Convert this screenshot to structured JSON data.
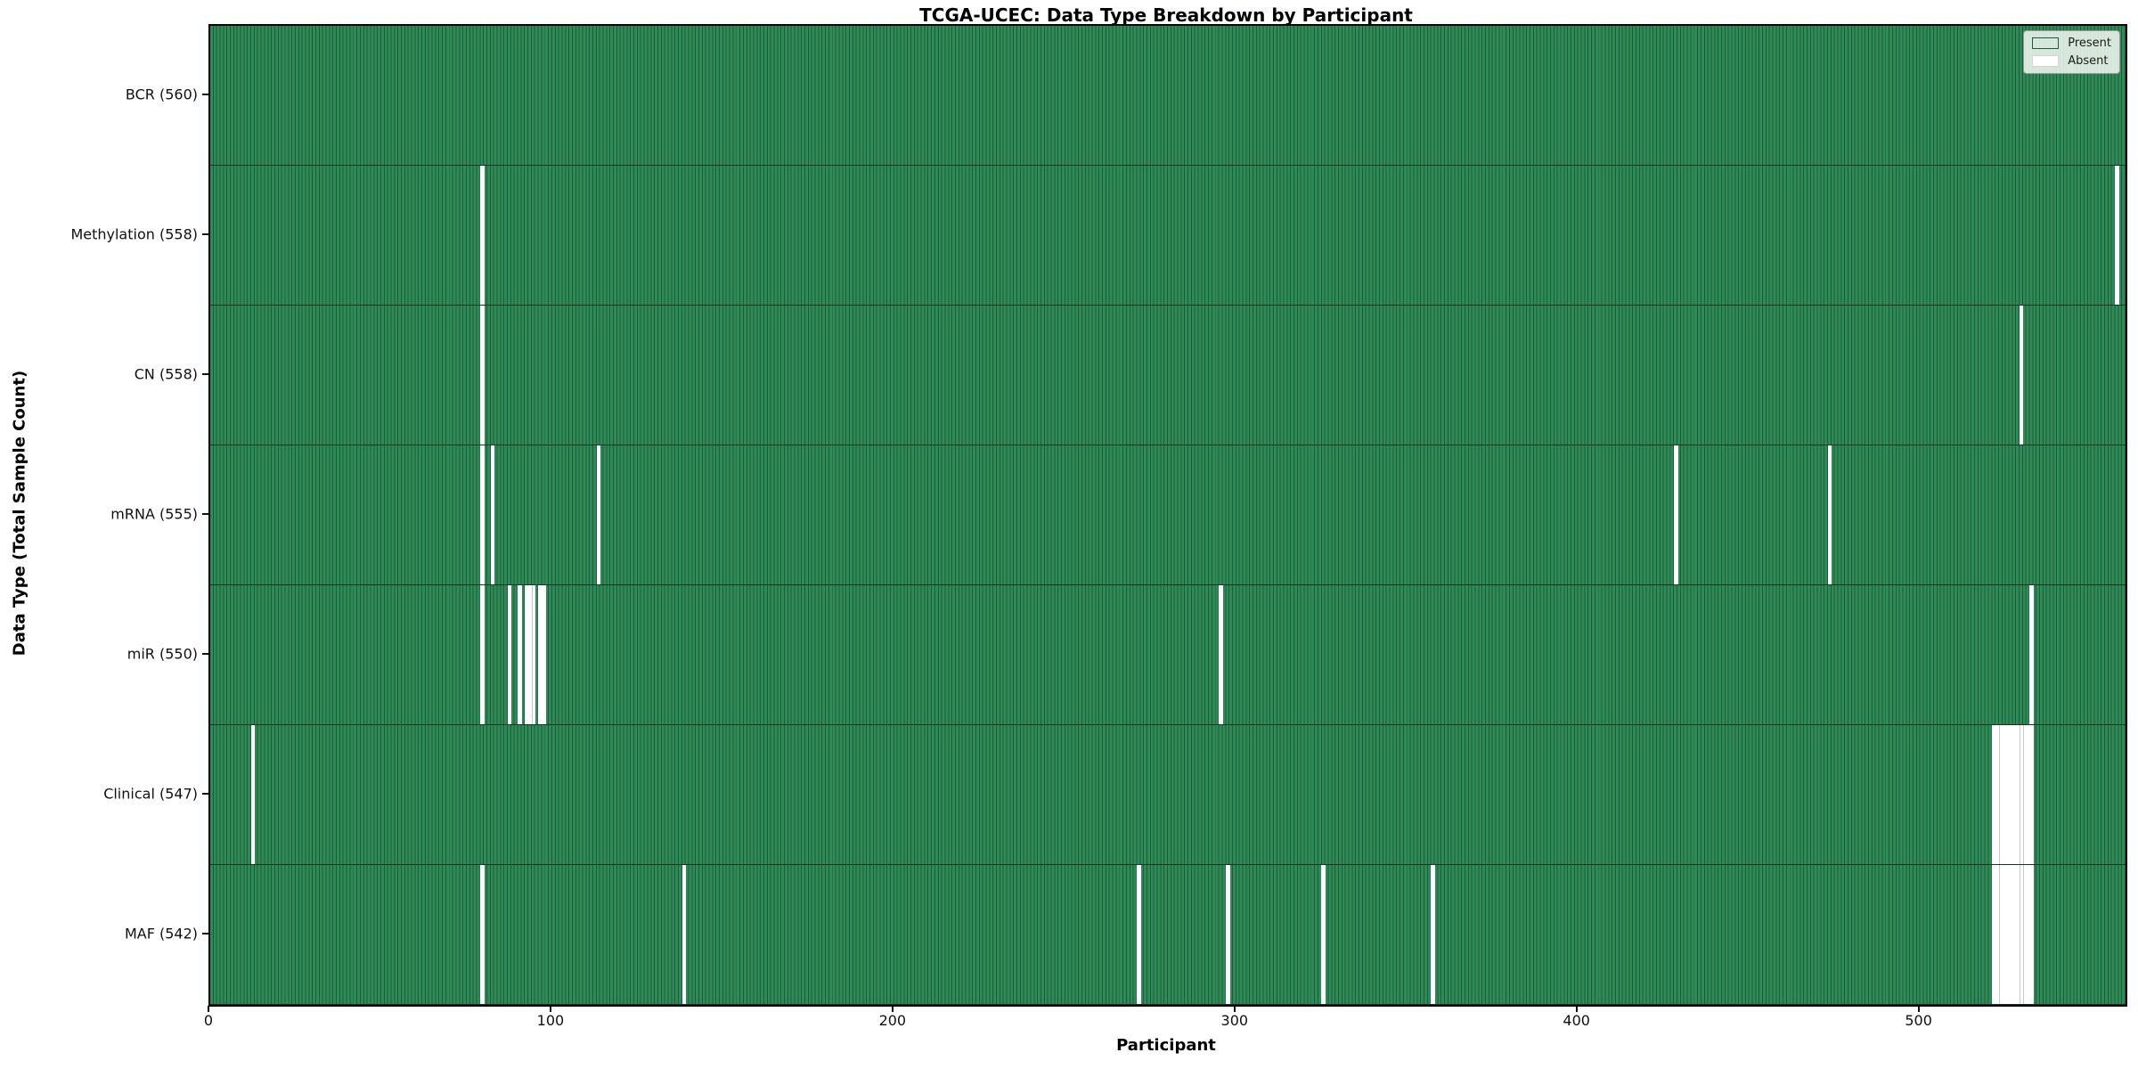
{
  "chart_data": {
    "type": "heatmap",
    "title": "TCGA-UCEC: Data Type Breakdown by Participant",
    "xlabel": "Participant",
    "ylabel": "Data Type (Total Sample Count)",
    "x_ticks": [
      0,
      100,
      200,
      300,
      400,
      500
    ],
    "x_range": [
      0,
      560
    ],
    "n_participants": 560,
    "grid": false,
    "legend_position": "upper right",
    "rows": [
      {
        "name": "BCR",
        "total": 560,
        "tick_label": "BCR (560)",
        "absent_participants": []
      },
      {
        "name": "Methylation",
        "total": 558,
        "tick_label": "Methylation (558)",
        "absent_participants": [
          79,
          557
        ]
      },
      {
        "name": "CN",
        "total": 558,
        "tick_label": "CN (558)",
        "absent_participants": [
          79,
          529
        ]
      },
      {
        "name": "mRNA",
        "total": 555,
        "tick_label": "mRNA (555)",
        "absent_participants": [
          79,
          82,
          113,
          428,
          473
        ]
      },
      {
        "name": "miR",
        "total": 550,
        "tick_label": "miR (550)",
        "absent_participants": [
          79,
          87,
          90,
          92,
          93,
          94,
          96,
          97,
          295,
          532
        ]
      },
      {
        "name": "Clinical",
        "total": 547,
        "tick_label": "Clinical (547)",
        "absent_participants": [
          12,
          521,
          522,
          523,
          524,
          525,
          526,
          527,
          528,
          529,
          530,
          531,
          532
        ]
      },
      {
        "name": "MAF",
        "total": 542,
        "tick_label": "MAF (542)",
        "absent_participants": [
          79,
          138,
          271,
          297,
          325,
          357,
          521,
          522,
          523,
          524,
          525,
          526,
          527,
          528,
          529,
          530,
          531,
          532
        ]
      }
    ]
  },
  "legend": {
    "present": "Present",
    "absent": "Absent"
  },
  "colors": {
    "present_fill": "#2e8b57",
    "present_edge": "#1d5c3a",
    "absent_fill": "#ffffff",
    "row_divider": "#14341f",
    "axis": "#000000"
  }
}
